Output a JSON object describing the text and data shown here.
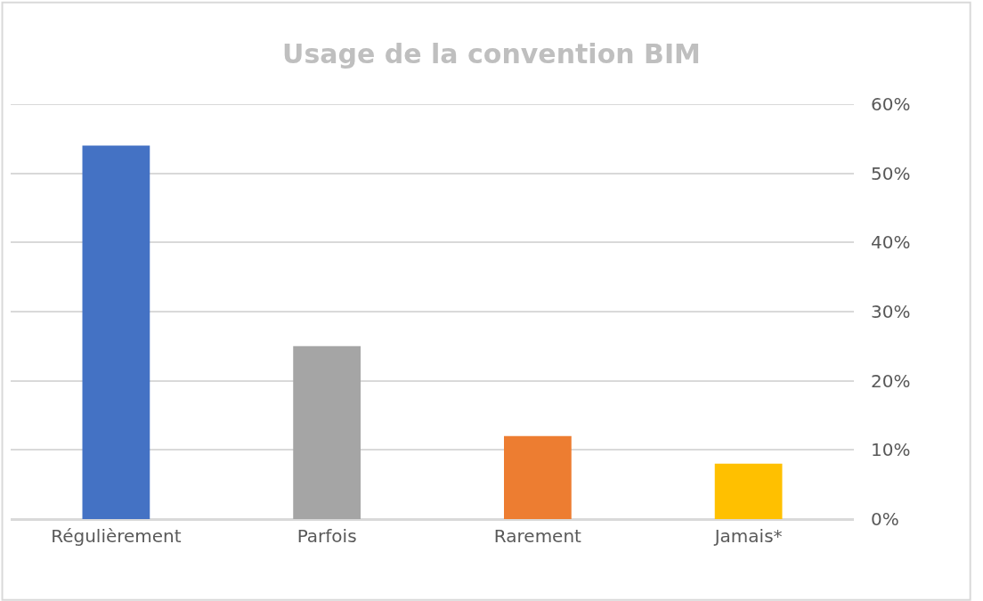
{
  "chart_data": {
    "type": "bar",
    "title": "Usage de la convention BIM",
    "categories": [
      "Régulièrement",
      "Parfois",
      "Rarement",
      "Jamais*"
    ],
    "values": [
      54,
      25,
      12,
      8
    ],
    "colors": [
      "#4472c4",
      "#a5a5a5",
      "#ed7d31",
      "#ffc000"
    ],
    "ylim": [
      0,
      60
    ],
    "yticks": [
      {
        "value": 0,
        "label": "0%"
      },
      {
        "value": 10,
        "label": "10%"
      },
      {
        "value": 20,
        "label": "20%"
      },
      {
        "value": 30,
        "label": "30%"
      },
      {
        "value": 40,
        "label": "40%"
      },
      {
        "value": 50,
        "label": "50%"
      },
      {
        "value": 60,
        "label": "60%"
      }
    ],
    "grid": "y"
  }
}
